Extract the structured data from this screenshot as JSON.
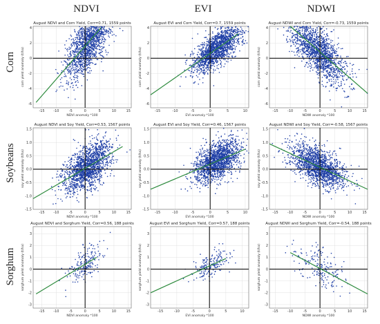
{
  "column_headers": [
    "NDVI",
    "EVI",
    "NDWI"
  ],
  "row_headers": [
    "Corn",
    "Soybeans",
    "Sorghum"
  ],
  "colors": {
    "points": "#1f3fa6",
    "fit_line": "#2e8b3e",
    "zero_axes": "#111111",
    "grid": "#d9d9d9"
  },
  "chart_data": [
    {
      "type": "scatter",
      "row": "Corn",
      "column": "NDVI",
      "title": "August NDVI and Corn Yield, Corr=0.71, 1559 points",
      "xlabel": "NDVI anomaly *100",
      "ylabel": "corn yield anomaly (t/ha)",
      "xlim": [
        -18,
        16
      ],
      "ylim": [
        -6.5,
        4.2
      ],
      "xticks": [
        -15,
        -10,
        -5,
        0,
        5,
        10,
        15
      ],
      "yticks": [
        -6,
        -4,
        -2,
        0,
        2,
        4
      ],
      "corr": 0.71,
      "n_points": 1559,
      "fit_line": [
        [
          -17,
          -5.8
        ],
        [
          5.5,
          4.0
        ]
      ],
      "x_center": 1.5,
      "x_spread": 4.2,
      "grid": true
    },
    {
      "type": "scatter",
      "row": "Corn",
      "column": "EVI",
      "title": "August EVI and Corn Yield, Corr=0.7, 1559 points",
      "xlabel": "EVI anomaly *100",
      "ylabel": "corn yield anomaly (t/ha)",
      "xlim": [
        -17,
        11
      ],
      "ylim": [
        -6.5,
        4.2
      ],
      "xticks": [
        -15,
        -10,
        -5,
        0,
        5,
        10
      ],
      "yticks": [
        -6,
        -4,
        -2,
        0,
        2,
        4
      ],
      "corr": 0.7,
      "n_points": 1559,
      "fit_line": [
        [
          -17,
          -4.8
        ],
        [
          8,
          3.2
        ]
      ],
      "x_center": 2.0,
      "x_spread": 3.4,
      "grid": true
    },
    {
      "type": "scatter",
      "row": "Corn",
      "column": "NDWI",
      "title": "August NDWI and Corn Yield, Corr=-0.73, 1559 points",
      "xlabel": "NDWI anomaly *100",
      "ylabel": "corn yield anomaly (t/ha)",
      "xlim": [
        -17,
        16
      ],
      "ylim": [
        -6.5,
        4.2
      ],
      "xticks": [
        -15,
        -10,
        -5,
        0,
        5,
        10,
        15
      ],
      "yticks": [
        -6,
        -4,
        -2,
        0,
        2,
        4
      ],
      "corr": -0.73,
      "n_points": 1559,
      "fit_line": [
        [
          -10,
          4.2
        ],
        [
          16,
          -4.6
        ]
      ],
      "x_center": -1.0,
      "x_spread": 4.8,
      "grid": true
    },
    {
      "type": "scatter",
      "row": "Soybeans",
      "column": "NDVI",
      "title": "August NDVI and Soy Yield, Corr=0.53, 1567 points",
      "xlabel": "NDVI anomaly *100",
      "ylabel": "soy yield anomaly (t/ha)",
      "xlim": [
        -18,
        16
      ],
      "ylim": [
        -1.5,
        1.55
      ],
      "xticks": [
        -15,
        -10,
        -5,
        0,
        5,
        10,
        15
      ],
      "yticks": [
        -1.5,
        -1.0,
        -0.5,
        0.0,
        0.5,
        1.0,
        1.5
      ],
      "corr": 0.53,
      "n_points": 1567,
      "fit_line": [
        [
          -18,
          -1.1
        ],
        [
          13,
          0.85
        ]
      ],
      "x_center": 1.0,
      "x_spread": 4.2,
      "grid": true
    },
    {
      "type": "scatter",
      "row": "Soybeans",
      "column": "EVI",
      "title": "August EVI and Soy Yield, Corr=0.46, 1567 points",
      "xlabel": "EVI anomaly *100",
      "ylabel": "soy yield anomaly (t/ha)",
      "xlim": [
        -17,
        11
      ],
      "ylim": [
        -1.5,
        1.55
      ],
      "xticks": [
        -15,
        -10,
        -5,
        0,
        5,
        10
      ],
      "yticks": [
        -1.5,
        -1.0,
        -0.5,
        0.0,
        0.5,
        1.0,
        1.5
      ],
      "corr": 0.46,
      "n_points": 1567,
      "fit_line": [
        [
          -17,
          -0.75
        ],
        [
          10,
          0.75
        ]
      ],
      "x_center": 2.0,
      "x_spread": 3.2,
      "grid": true
    },
    {
      "type": "scatter",
      "row": "Soybeans",
      "column": "NDWI",
      "title": "August NDWI and Soy Yield, Corr=-0.58, 1567 points",
      "xlabel": "NDWI anomaly *100",
      "ylabel": "soy yield anomaly (t/ha)",
      "xlim": [
        -17,
        16
      ],
      "ylim": [
        -1.5,
        1.55
      ],
      "xticks": [
        -15,
        -10,
        -5,
        0,
        5,
        10,
        15
      ],
      "yticks": [
        -1.5,
        -1.0,
        -0.5,
        0.0,
        0.5,
        1.0,
        1.5
      ],
      "corr": -0.58,
      "n_points": 1567,
      "fit_line": [
        [
          -17,
          0.95
        ],
        [
          16,
          -0.75
        ]
      ],
      "x_center": -0.5,
      "x_spread": 4.6,
      "grid": true
    },
    {
      "type": "scatter",
      "row": "Sorghum",
      "column": "NDVI",
      "title": "August NDVI and Sorghum Yield, Corr=0.56, 188 points",
      "xlabel": "NDVI anomaly *100",
      "ylabel": "sorghum yield anomaly (t/ha)",
      "xlim": [
        -18,
        16
      ],
      "ylim": [
        -3.3,
        3.6
      ],
      "xticks": [
        -15,
        -10,
        -5,
        0,
        5,
        10,
        15
      ],
      "yticks": [
        -3,
        -2,
        -1,
        0,
        1,
        2,
        3
      ],
      "corr": 0.56,
      "n_points": 188,
      "fit_line": [
        [
          -17,
          -2.1
        ],
        [
          4,
          1.0
        ]
      ],
      "x_center": 0.5,
      "x_spread": 3.0,
      "grid": true
    },
    {
      "type": "scatter",
      "row": "Sorghum",
      "column": "EVI",
      "title": "August EVI and Sorghum Yield, Corr=0.57, 188 points",
      "xlabel": "EVI anomaly *100",
      "ylabel": "sorghum yield anomaly (t/ha)",
      "xlim": [
        -18,
        12
      ],
      "ylim": [
        -3.3,
        3.6
      ],
      "xticks": [
        -15,
        -10,
        -5,
        0,
        5,
        10
      ],
      "yticks": [
        -3,
        -2,
        -1,
        0,
        1,
        2,
        3
      ],
      "corr": 0.57,
      "n_points": 188,
      "fit_line": [
        [
          -18,
          -2.0
        ],
        [
          5,
          0.9
        ]
      ],
      "x_center": 0.5,
      "x_spread": 2.8,
      "grid": true
    },
    {
      "type": "scatter",
      "row": "Sorghum",
      "column": "NDWI",
      "title": "August NDWI and Sorghum Yield, Corr=-0.54, 188 points",
      "xlabel": "NDWI anomaly *100",
      "ylabel": "sorghum yield anomaly (t/ha)",
      "xlim": [
        -17,
        16
      ],
      "ylim": [
        -3.3,
        3.6
      ],
      "xticks": [
        -15,
        -10,
        -5,
        0,
        5,
        10,
        15
      ],
      "yticks": [
        -3,
        -2,
        -1,
        0,
        1,
        2,
        3
      ],
      "corr": -0.54,
      "n_points": 188,
      "fit_line": [
        [
          -10,
          1.4
        ],
        [
          16,
          -2.1
        ]
      ],
      "x_center": 0.0,
      "x_spread": 4.0,
      "grid": true
    }
  ]
}
